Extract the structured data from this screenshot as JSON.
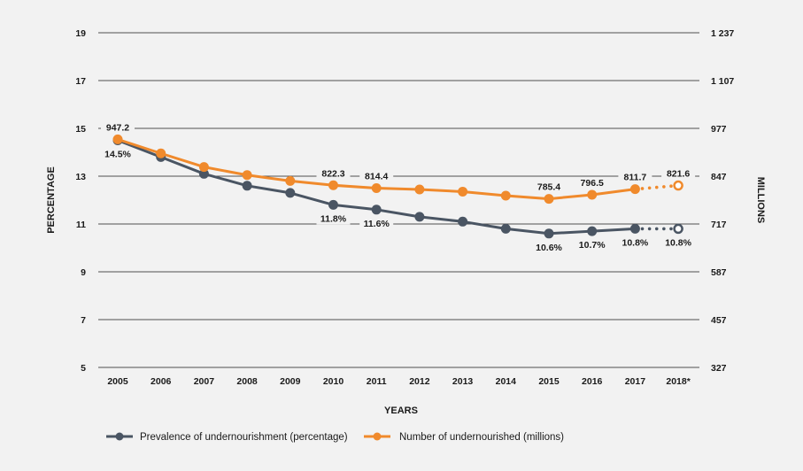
{
  "chart_data": {
    "type": "line",
    "categories": [
      "2005",
      "2006",
      "2007",
      "2008",
      "2009",
      "2010",
      "2011",
      "2012",
      "2013",
      "2014",
      "2015",
      "2016",
      "2017",
      "2018*"
    ],
    "xlabel": "YEARS",
    "ylabel_left": "PERCENTAGE",
    "ylabel_right": "MILLIONS",
    "left_axis": {
      "ticks": [
        "5",
        "7",
        "9",
        "11",
        "13",
        "15",
        "17",
        "19"
      ],
      "ylim": [
        5,
        19
      ]
    },
    "right_axis": {
      "ticks": [
        "327",
        "457",
        "587",
        "717",
        "847",
        "977",
        "1 107",
        "1 237"
      ],
      "ylim": [
        327,
        1237
      ]
    },
    "grid": true,
    "series": [
      {
        "name": "Prevalence of undernourishment (percentage)",
        "axis": "left",
        "color": "#4a5563",
        "values": [
          14.5,
          13.8,
          13.1,
          12.6,
          12.3,
          11.8,
          11.6,
          11.3,
          11.1,
          10.8,
          10.6,
          10.7,
          10.8,
          10.8
        ],
        "projected_from_index": 12,
        "labels": [
          {
            "i": 0,
            "text": "14.5%"
          },
          {
            "i": 5,
            "text": "11.8%"
          },
          {
            "i": 6,
            "text": "11.6%"
          },
          {
            "i": 10,
            "text": "10.6%"
          },
          {
            "i": 11,
            "text": "10.7%"
          },
          {
            "i": 12,
            "text": "10.8%"
          },
          {
            "i": 13,
            "text": "10.8%"
          }
        ]
      },
      {
        "name": "Number of undernourished (millions)",
        "axis": "right",
        "color": "#f08a2c",
        "values": [
          947.2,
          909,
          872,
          850,
          834,
          822.3,
          814.4,
          811,
          805,
          794,
          785.4,
          796.5,
          811.7,
          821.6
        ],
        "projected_from_index": 12,
        "labels": [
          {
            "i": 0,
            "text": "947.2"
          },
          {
            "i": 5,
            "text": "822.3"
          },
          {
            "i": 6,
            "text": "814.4"
          },
          {
            "i": 10,
            "text": "785.4"
          },
          {
            "i": 11,
            "text": "796.5"
          },
          {
            "i": 12,
            "text": "811.7"
          },
          {
            "i": 13,
            "text": "821.6"
          }
        ]
      }
    ],
    "legend_position": "bottom-left"
  }
}
